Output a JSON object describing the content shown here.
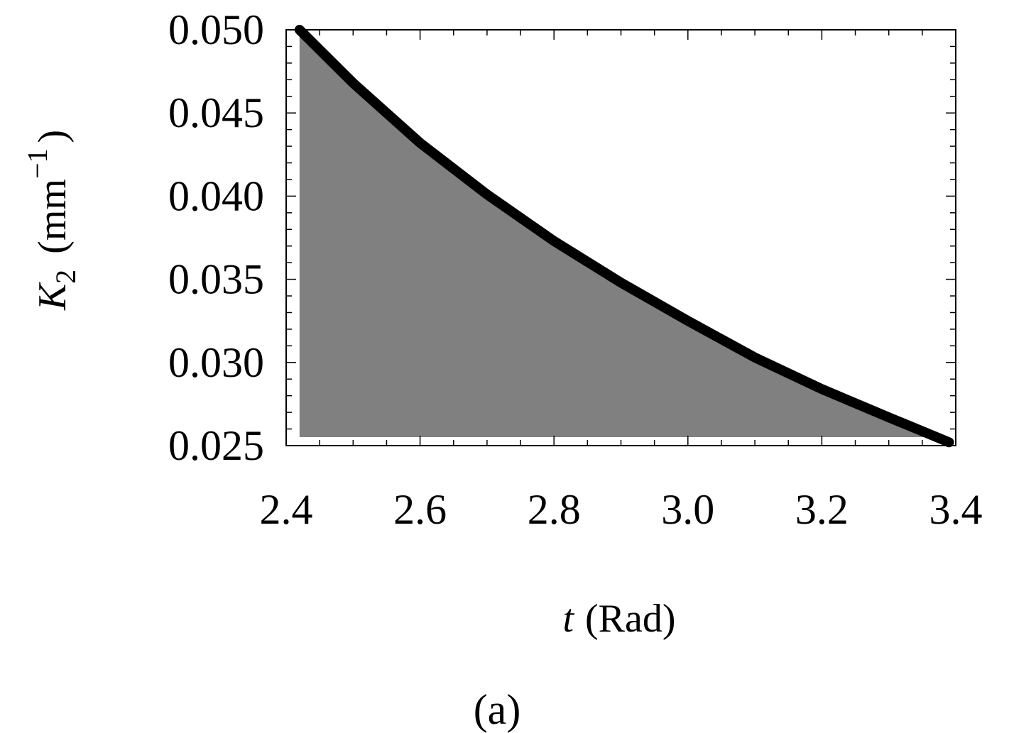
{
  "chart_data": {
    "type": "area",
    "title": "",
    "caption": "(a)",
    "xlabel": {
      "symbol": "t",
      "unit": "(Rad)"
    },
    "ylabel": {
      "symbol": "K",
      "subscript": "2",
      "unit_open": "(mm",
      "superscript": "−1",
      "unit_close": ")"
    },
    "xlim": [
      2.4,
      3.4
    ],
    "ylim": [
      0.025,
      0.05
    ],
    "xticks": [
      "2.4",
      "2.6",
      "2.8",
      "3.0",
      "3.2",
      "3.4"
    ],
    "yticks": [
      "0.025",
      "0.030",
      "0.035",
      "0.040",
      "0.045",
      "0.050"
    ],
    "grid": false,
    "series": [
      {
        "x": [
          2.42,
          2.5,
          2.6,
          2.7,
          2.8,
          2.9,
          3.0,
          3.1,
          3.2,
          3.3,
          3.39
        ],
        "y": [
          0.05,
          0.0468,
          0.0432,
          0.0401,
          0.0373,
          0.0348,
          0.0325,
          0.0303,
          0.0284,
          0.0267,
          0.0252
        ]
      }
    ],
    "colors": {
      "fill": "#808080",
      "line": "#000000",
      "frame": "#000000"
    }
  }
}
